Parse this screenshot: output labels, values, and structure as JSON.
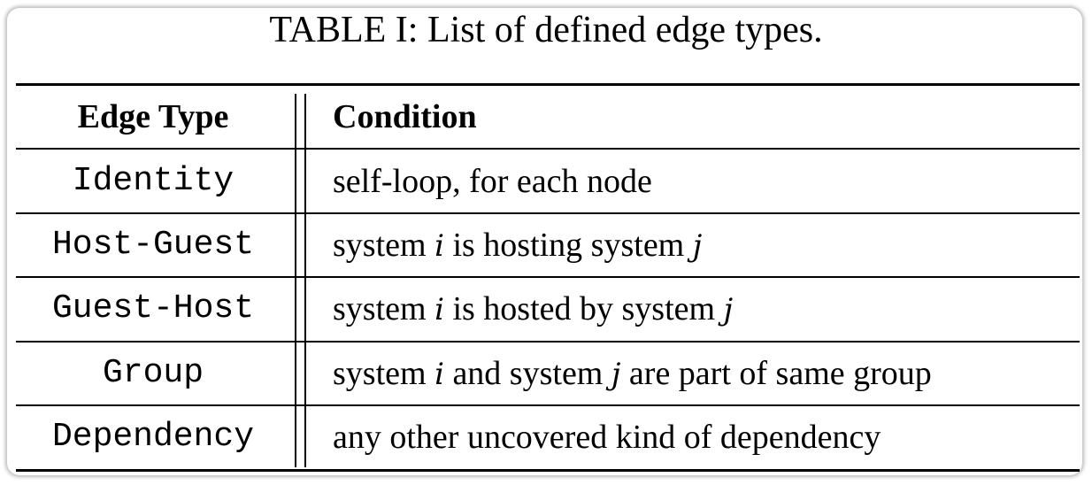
{
  "caption": "TABLE I: List of defined edge types.",
  "table": {
    "headers": [
      "Edge Type",
      "Condition"
    ],
    "rows": [
      {
        "edge_type": "Identity",
        "condition": [
          {
            "text": "self-loop, for each node"
          }
        ]
      },
      {
        "edge_type": "Host-Guest",
        "condition": [
          {
            "text": "system "
          },
          {
            "text": "i",
            "math": true
          },
          {
            "text": " is hosting system "
          },
          {
            "text": "j",
            "math": true
          }
        ]
      },
      {
        "edge_type": "Guest-Host",
        "condition": [
          {
            "text": "system "
          },
          {
            "text": "i",
            "math": true
          },
          {
            "text": " is hosted by system "
          },
          {
            "text": "j",
            "math": true
          }
        ]
      },
      {
        "edge_type": "Group",
        "condition": [
          {
            "text": "system "
          },
          {
            "text": "i",
            "math": true
          },
          {
            "text": " and system "
          },
          {
            "text": "j",
            "math": true
          },
          {
            "text": " are part of same group"
          }
        ]
      },
      {
        "edge_type": "Dependency",
        "condition": [
          {
            "text": "any other uncovered kind of dependency"
          }
        ]
      }
    ]
  }
}
